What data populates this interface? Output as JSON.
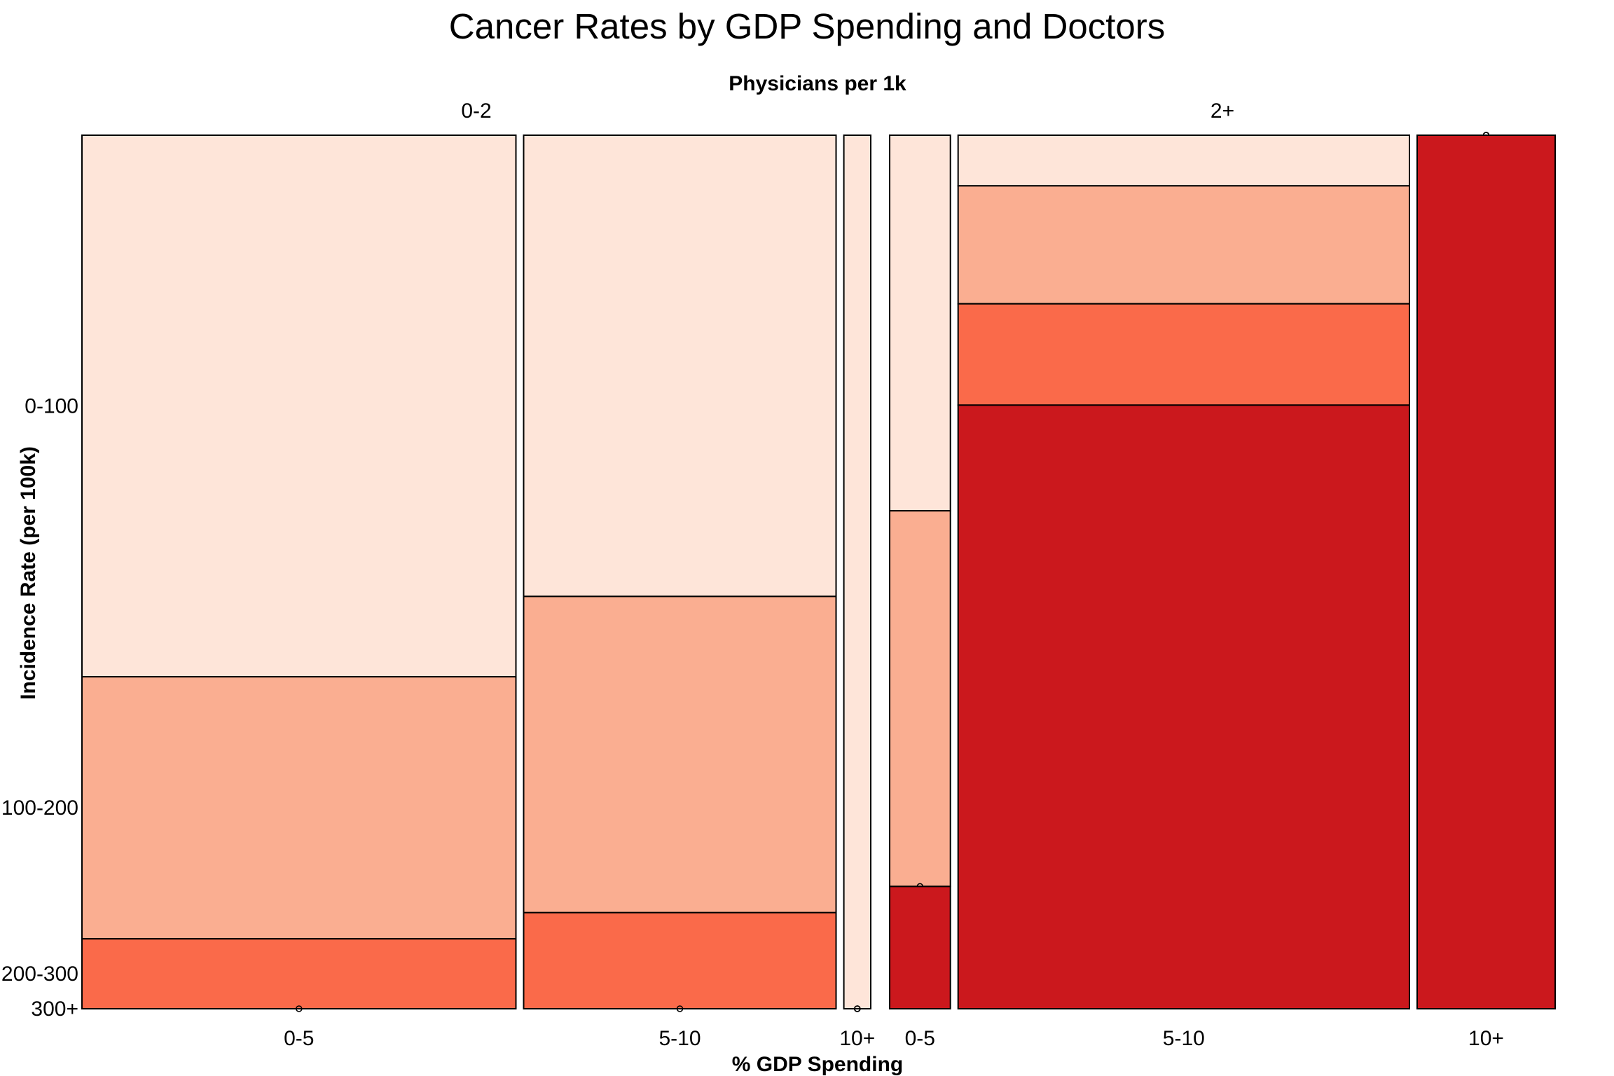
{
  "chart_data": {
    "type": "mosaic",
    "title": "Cancer Rates by GDP Spending and Doctors",
    "top_axis_title": "Physicians per 1k",
    "xlabel": "% GDP Spending",
    "ylabel": "Incidence Rate (per 100k)",
    "incidence_levels": [
      "0-100",
      "100-200",
      "200-300",
      "300+"
    ],
    "level_colors": [
      "#FEE5D9",
      "#FAAE91",
      "#FA6A4A",
      "#CB181D"
    ],
    "groups": [
      {
        "name": "0-2",
        "spending": [
          {
            "label": "0-5",
            "weight": 1.0,
            "proportions": [
              0.62,
              0.3,
              0.08,
              0.0
            ]
          },
          {
            "label": "5-10",
            "weight": 0.72,
            "proportions": [
              0.528,
              0.362,
              0.11,
              0.0
            ]
          },
          {
            "label": "10+",
            "weight": 0.062,
            "proportions": [
              1.0,
              0.0,
              0.0,
              0.0
            ]
          }
        ]
      },
      {
        "name": "2+",
        "spending": [
          {
            "label": "0-5",
            "weight": 0.14,
            "proportions": [
              0.43,
              0.43,
              0.0,
              0.14
            ]
          },
          {
            "label": "5-10",
            "weight": 1.04,
            "proportions": [
              0.058,
              0.135,
              0.116,
              0.691
            ]
          },
          {
            "label": "10+",
            "weight": 0.318,
            "proportions": [
              0.0,
              0.0,
              0.0,
              1.0
            ]
          }
        ]
      }
    ]
  }
}
